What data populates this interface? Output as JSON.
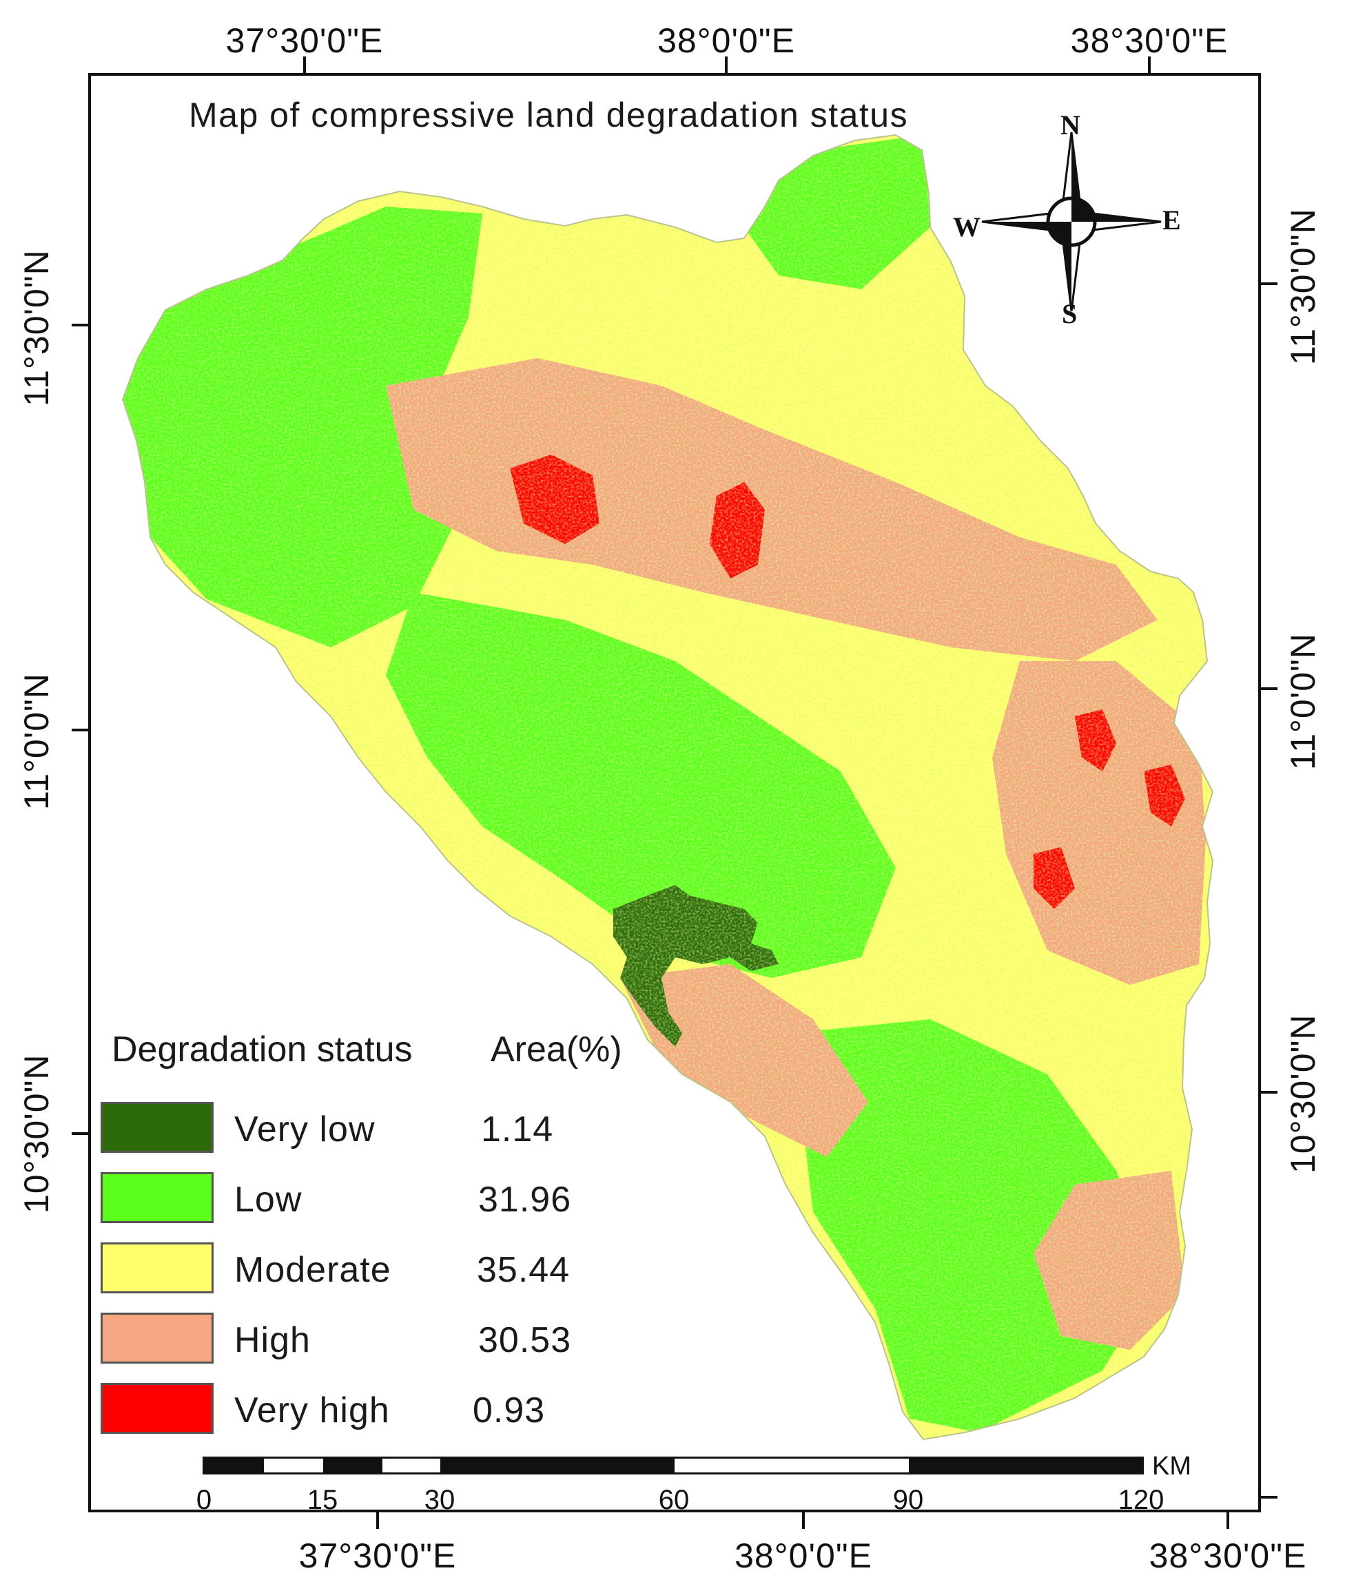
{
  "title": "Map of compressive land degradation status",
  "colors": {
    "very_low": "#2d6a0a",
    "low": "#5cff1c",
    "moderate": "#ffff6e",
    "high": "#f5a682",
    "very_high": "#ff0000"
  },
  "axes": {
    "top_ticks": [
      "37°30'0\"E",
      "38°0'0\"E",
      "38°30'0\"E"
    ],
    "bottom_ticks": [
      "37°30'0\"E",
      "38°0'0\"E",
      "38°30'0\"E"
    ],
    "left_ticks": [
      "11°30'0\"N",
      "11°0'0\"N",
      "10°30'0\"N"
    ],
    "right_ticks": [
      "11°30'0\"N",
      "11°0'0\"N",
      "10°30'0\"N"
    ]
  },
  "compass": {
    "n": "N",
    "s": "S",
    "e": "E",
    "w": "W",
    "icon": "north-arrow-compass-rose-icon"
  },
  "legend": {
    "title": "Degradation status",
    "area_title": "Area(%)",
    "items": [
      {
        "label": "Very low",
        "value": "1.14",
        "color": "#2d6a0a"
      },
      {
        "label": "Low",
        "value": "31.96",
        "color": "#5cff1c"
      },
      {
        "label": "Moderate",
        "value": "35.44",
        "color": "#ffff6e"
      },
      {
        "label": "High",
        "value": "30.53",
        "color": "#f5a682"
      },
      {
        "label": "Very high",
        "value": "0.93",
        "color": "#ff0000"
      }
    ]
  },
  "scale_bar": {
    "unit": "KM",
    "labels": [
      "0",
      "15",
      "30",
      "60",
      "90",
      "120"
    ]
  }
}
